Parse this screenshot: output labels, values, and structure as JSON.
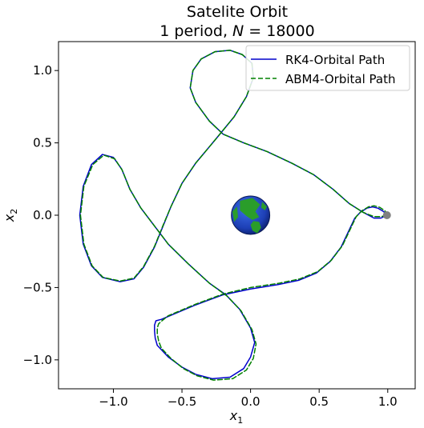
{
  "chart_data": {
    "type": "line",
    "title": "Satelite Orbit",
    "subtitle_prefix": "1 period, ",
    "subtitle_var": "N",
    "subtitle_value": " = 18000",
    "xlabel": "x",
    "xlabel_sub": "1",
    "ylabel": "x",
    "ylabel_sub": "2",
    "xlim": [
      -1.4,
      1.2
    ],
    "ylim": [
      -1.2,
      1.2
    ],
    "xticks": [
      -1.0,
      -0.5,
      0.0,
      0.5,
      1.0
    ],
    "xtick_labels": [
      "−1.0",
      "−0.5",
      "0.0",
      "0.5",
      "1.0"
    ],
    "yticks": [
      -1.0,
      -0.5,
      0.0,
      0.5,
      1.0
    ],
    "ytick_labels": [
      "−1.0",
      "−0.5",
      "0.0",
      "0.5",
      "1.0"
    ],
    "grid": false,
    "legend_position": "top-right",
    "earth": {
      "x": 0.0,
      "y": 0.0,
      "radius": 0.14
    },
    "moon": {
      "x": 0.994,
      "y": 0.0
    },
    "series": [
      {
        "name": "RK4-Orbital Path",
        "color": "#0000cc",
        "style": "solid",
        "points": [
          [
            0.994,
            0.0
          ],
          [
            0.97,
            0.025
          ],
          [
            0.93,
            0.048
          ],
          [
            0.89,
            0.057
          ],
          [
            0.85,
            0.05
          ],
          [
            0.8,
            0.02
          ],
          [
            0.76,
            -0.02
          ],
          [
            0.72,
            -0.1
          ],
          [
            0.66,
            -0.22
          ],
          [
            0.58,
            -0.32
          ],
          [
            0.48,
            -0.4
          ],
          [
            0.35,
            -0.45
          ],
          [
            0.2,
            -0.48
          ],
          [
            0.0,
            -0.51
          ],
          [
            -0.2,
            -0.55
          ],
          [
            -0.4,
            -0.62
          ],
          [
            -0.5,
            -0.66
          ],
          [
            -0.6,
            -0.7
          ],
          [
            -0.65,
            -0.72
          ],
          [
            -0.69,
            -0.73
          ],
          [
            -0.7,
            -0.76
          ],
          [
            -0.7,
            -0.8
          ],
          [
            -0.695,
            -0.85
          ],
          [
            -0.68,
            -0.9
          ],
          [
            -0.6,
            -0.98
          ],
          [
            -0.5,
            -1.05
          ],
          [
            -0.4,
            -1.1
          ],
          [
            -0.28,
            -1.13
          ],
          [
            -0.15,
            -1.12
          ],
          [
            -0.05,
            -1.06
          ],
          [
            0.0,
            -0.98
          ],
          [
            0.03,
            -0.88
          ],
          [
            0.0,
            -0.78
          ],
          [
            -0.08,
            -0.65
          ],
          [
            -0.18,
            -0.55
          ],
          [
            -0.3,
            -0.47
          ],
          [
            -0.45,
            -0.34
          ],
          [
            -0.6,
            -0.2
          ],
          [
            -0.72,
            -0.05
          ],
          [
            -0.8,
            0.05
          ],
          [
            -0.88,
            0.18
          ],
          [
            -0.94,
            0.32
          ],
          [
            -1.0,
            0.4
          ],
          [
            -1.08,
            0.42
          ],
          [
            -1.16,
            0.35
          ],
          [
            -1.22,
            0.2
          ],
          [
            -1.245,
            0.0
          ],
          [
            -1.22,
            -0.2
          ],
          [
            -1.16,
            -0.35
          ],
          [
            -1.08,
            -0.43
          ],
          [
            -0.95,
            -0.46
          ],
          [
            -0.85,
            -0.44
          ],
          [
            -0.78,
            -0.36
          ],
          [
            -0.7,
            -0.22
          ],
          [
            -0.64,
            -0.08
          ],
          [
            -0.58,
            0.06
          ],
          [
            -0.5,
            0.22
          ],
          [
            -0.4,
            0.36
          ],
          [
            -0.25,
            0.53
          ],
          [
            -0.12,
            0.68
          ],
          [
            -0.03,
            0.82
          ],
          [
            0.02,
            0.95
          ],
          [
            0.01,
            1.05
          ],
          [
            -0.06,
            1.11
          ],
          [
            -0.15,
            1.14
          ],
          [
            -0.26,
            1.13
          ],
          [
            -0.36,
            1.08
          ],
          [
            -0.42,
            1.0
          ],
          [
            -0.44,
            0.88
          ],
          [
            -0.4,
            0.78
          ],
          [
            -0.3,
            0.65
          ],
          [
            -0.2,
            0.56
          ],
          [
            -0.05,
            0.5
          ],
          [
            0.12,
            0.44
          ],
          [
            0.3,
            0.36
          ],
          [
            0.46,
            0.28
          ],
          [
            0.6,
            0.18
          ],
          [
            0.72,
            0.08
          ],
          [
            0.82,
            0.02
          ],
          [
            0.9,
            -0.02
          ],
          [
            0.95,
            -0.02
          ],
          [
            0.994,
            0.0
          ]
        ]
      },
      {
        "name": "ABM4-Orbital Path",
        "color": "#008000",
        "style": "dashed",
        "points": [
          [
            0.994,
            0.0
          ],
          [
            0.98,
            0.03
          ],
          [
            0.94,
            0.055
          ],
          [
            0.9,
            0.065
          ],
          [
            0.86,
            0.058
          ],
          [
            0.81,
            0.03
          ],
          [
            0.77,
            -0.01
          ],
          [
            0.73,
            -0.09
          ],
          [
            0.67,
            -0.21
          ],
          [
            0.59,
            -0.31
          ],
          [
            0.49,
            -0.39
          ],
          [
            0.36,
            -0.44
          ],
          [
            0.21,
            -0.47
          ],
          [
            0.0,
            -0.5
          ],
          [
            -0.2,
            -0.545
          ],
          [
            -0.4,
            -0.615
          ],
          [
            -0.5,
            -0.655
          ],
          [
            -0.6,
            -0.695
          ],
          [
            -0.64,
            -0.725
          ],
          [
            -0.67,
            -0.75
          ],
          [
            -0.68,
            -0.78
          ],
          [
            -0.68,
            -0.82
          ],
          [
            -0.67,
            -0.87
          ],
          [
            -0.65,
            -0.92
          ],
          [
            -0.58,
            -0.99
          ],
          [
            -0.49,
            -1.06
          ],
          [
            -0.39,
            -1.11
          ],
          [
            -0.27,
            -1.14
          ],
          [
            -0.13,
            -1.13
          ],
          [
            -0.03,
            -1.07
          ],
          [
            0.02,
            -0.99
          ],
          [
            0.04,
            -0.89
          ],
          [
            0.01,
            -0.79
          ],
          [
            -0.07,
            -0.66
          ],
          [
            -0.17,
            -0.56
          ],
          [
            -0.3,
            -0.47
          ],
          [
            -0.45,
            -0.34
          ],
          [
            -0.6,
            -0.2
          ],
          [
            -0.72,
            -0.05
          ],
          [
            -0.8,
            0.05
          ],
          [
            -0.88,
            0.18
          ],
          [
            -0.935,
            0.31
          ],
          [
            -0.99,
            0.39
          ],
          [
            -1.07,
            0.415
          ],
          [
            -1.15,
            0.35
          ],
          [
            -1.215,
            0.2
          ],
          [
            -1.24,
            0.0
          ],
          [
            -1.215,
            -0.2
          ],
          [
            -1.155,
            -0.35
          ],
          [
            -1.075,
            -0.43
          ],
          [
            -0.95,
            -0.455
          ],
          [
            -0.85,
            -0.435
          ],
          [
            -0.78,
            -0.355
          ],
          [
            -0.7,
            -0.215
          ],
          [
            -0.64,
            -0.075
          ],
          [
            -0.58,
            0.06
          ],
          [
            -0.5,
            0.22
          ],
          [
            -0.4,
            0.36
          ],
          [
            -0.25,
            0.53
          ],
          [
            -0.12,
            0.68
          ],
          [
            -0.03,
            0.82
          ],
          [
            0.02,
            0.95
          ],
          [
            0.01,
            1.05
          ],
          [
            -0.06,
            1.11
          ],
          [
            -0.15,
            1.14
          ],
          [
            -0.26,
            1.13
          ],
          [
            -0.36,
            1.08
          ],
          [
            -0.42,
            1.0
          ],
          [
            -0.44,
            0.88
          ],
          [
            -0.4,
            0.78
          ],
          [
            -0.3,
            0.65
          ],
          [
            -0.2,
            0.56
          ],
          [
            -0.05,
            0.5
          ],
          [
            0.12,
            0.44
          ],
          [
            0.3,
            0.36
          ],
          [
            0.46,
            0.28
          ],
          [
            0.6,
            0.18
          ],
          [
            0.72,
            0.08
          ],
          [
            0.82,
            0.02
          ],
          [
            0.9,
            -0.01
          ],
          [
            0.95,
            -0.01
          ],
          [
            0.994,
            0.0
          ]
        ]
      }
    ]
  }
}
